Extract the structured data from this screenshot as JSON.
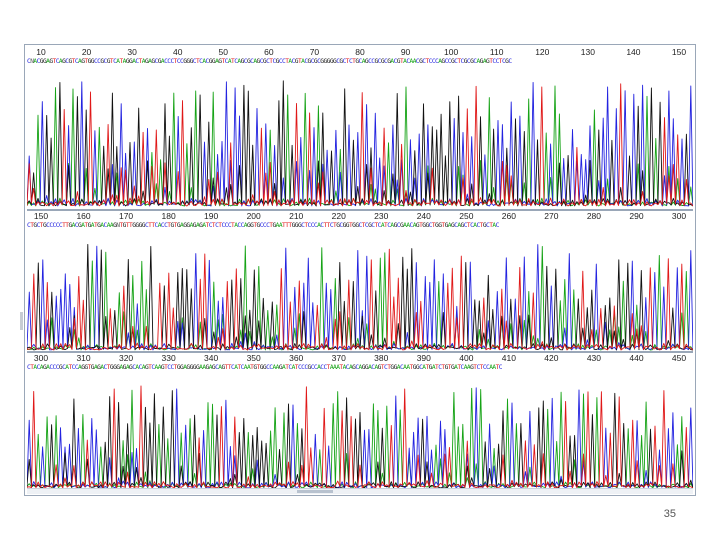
{
  "page_number": "35",
  "colors": {
    "A": "#16a316",
    "C": "#2323e0",
    "G": "#111111",
    "T": "#e01818",
    "frame": "#9aa7b8"
  },
  "panels": [
    {
      "ticks": [
        "10",
        "20",
        "30",
        "40",
        "50",
        "60",
        "70",
        "80",
        "90",
        "100",
        "110",
        "120",
        "130",
        "140",
        "150"
      ],
      "sequence": "CNACGGAGTCAGCGTCAGTGGCCGCGTCATAGGACTAGAGCGACCCTCCGGGCTCACGGAGTCATCAGCGCAGCGCTCGCCTACGTACGCGCGGGGGCGCTCTGCAGCCGCGCGACGTACAACGCTCCCAGCCGCTCGCGCAGAGTCCTCGC"
    },
    {
      "ticks": [
        "150",
        "160",
        "170",
        "180",
        "190",
        "200",
        "210",
        "220",
        "230",
        "240",
        "250",
        "260",
        "270",
        "280",
        "290",
        "300"
      ],
      "sequence": "CTGCTGCCCCCTTGACGATGATGACAAGNTGTTGGGGCTTCACCTGTGAGGAGAGATCTCTCCCTACCAGGTGCCCTGAATTTGGGCTCCCACTTCTGCGGTGGCTCGCTCATCAGCGAACAGTGGCTGGTGAGCAGCTCACTGCTAC"
    },
    {
      "ticks": [
        "300",
        "310",
        "320",
        "330",
        "340",
        "350",
        "360",
        "370",
        "380",
        "390",
        "400",
        "410",
        "420",
        "430",
        "440",
        "450"
      ],
      "sequence": "CTACAGACCCGCATCCAGGTGAGACTGGGAGAGCACAGTCAAGTCCTGGAGGGGAAGAGCAGTTCATCAATGTGGCCAAGATCATCCCGCCACCTAAATACAGCAGGACAGTCTGGACAATGGCATGATCTGTGATCAAGTCTCCAATC"
    }
  ]
}
